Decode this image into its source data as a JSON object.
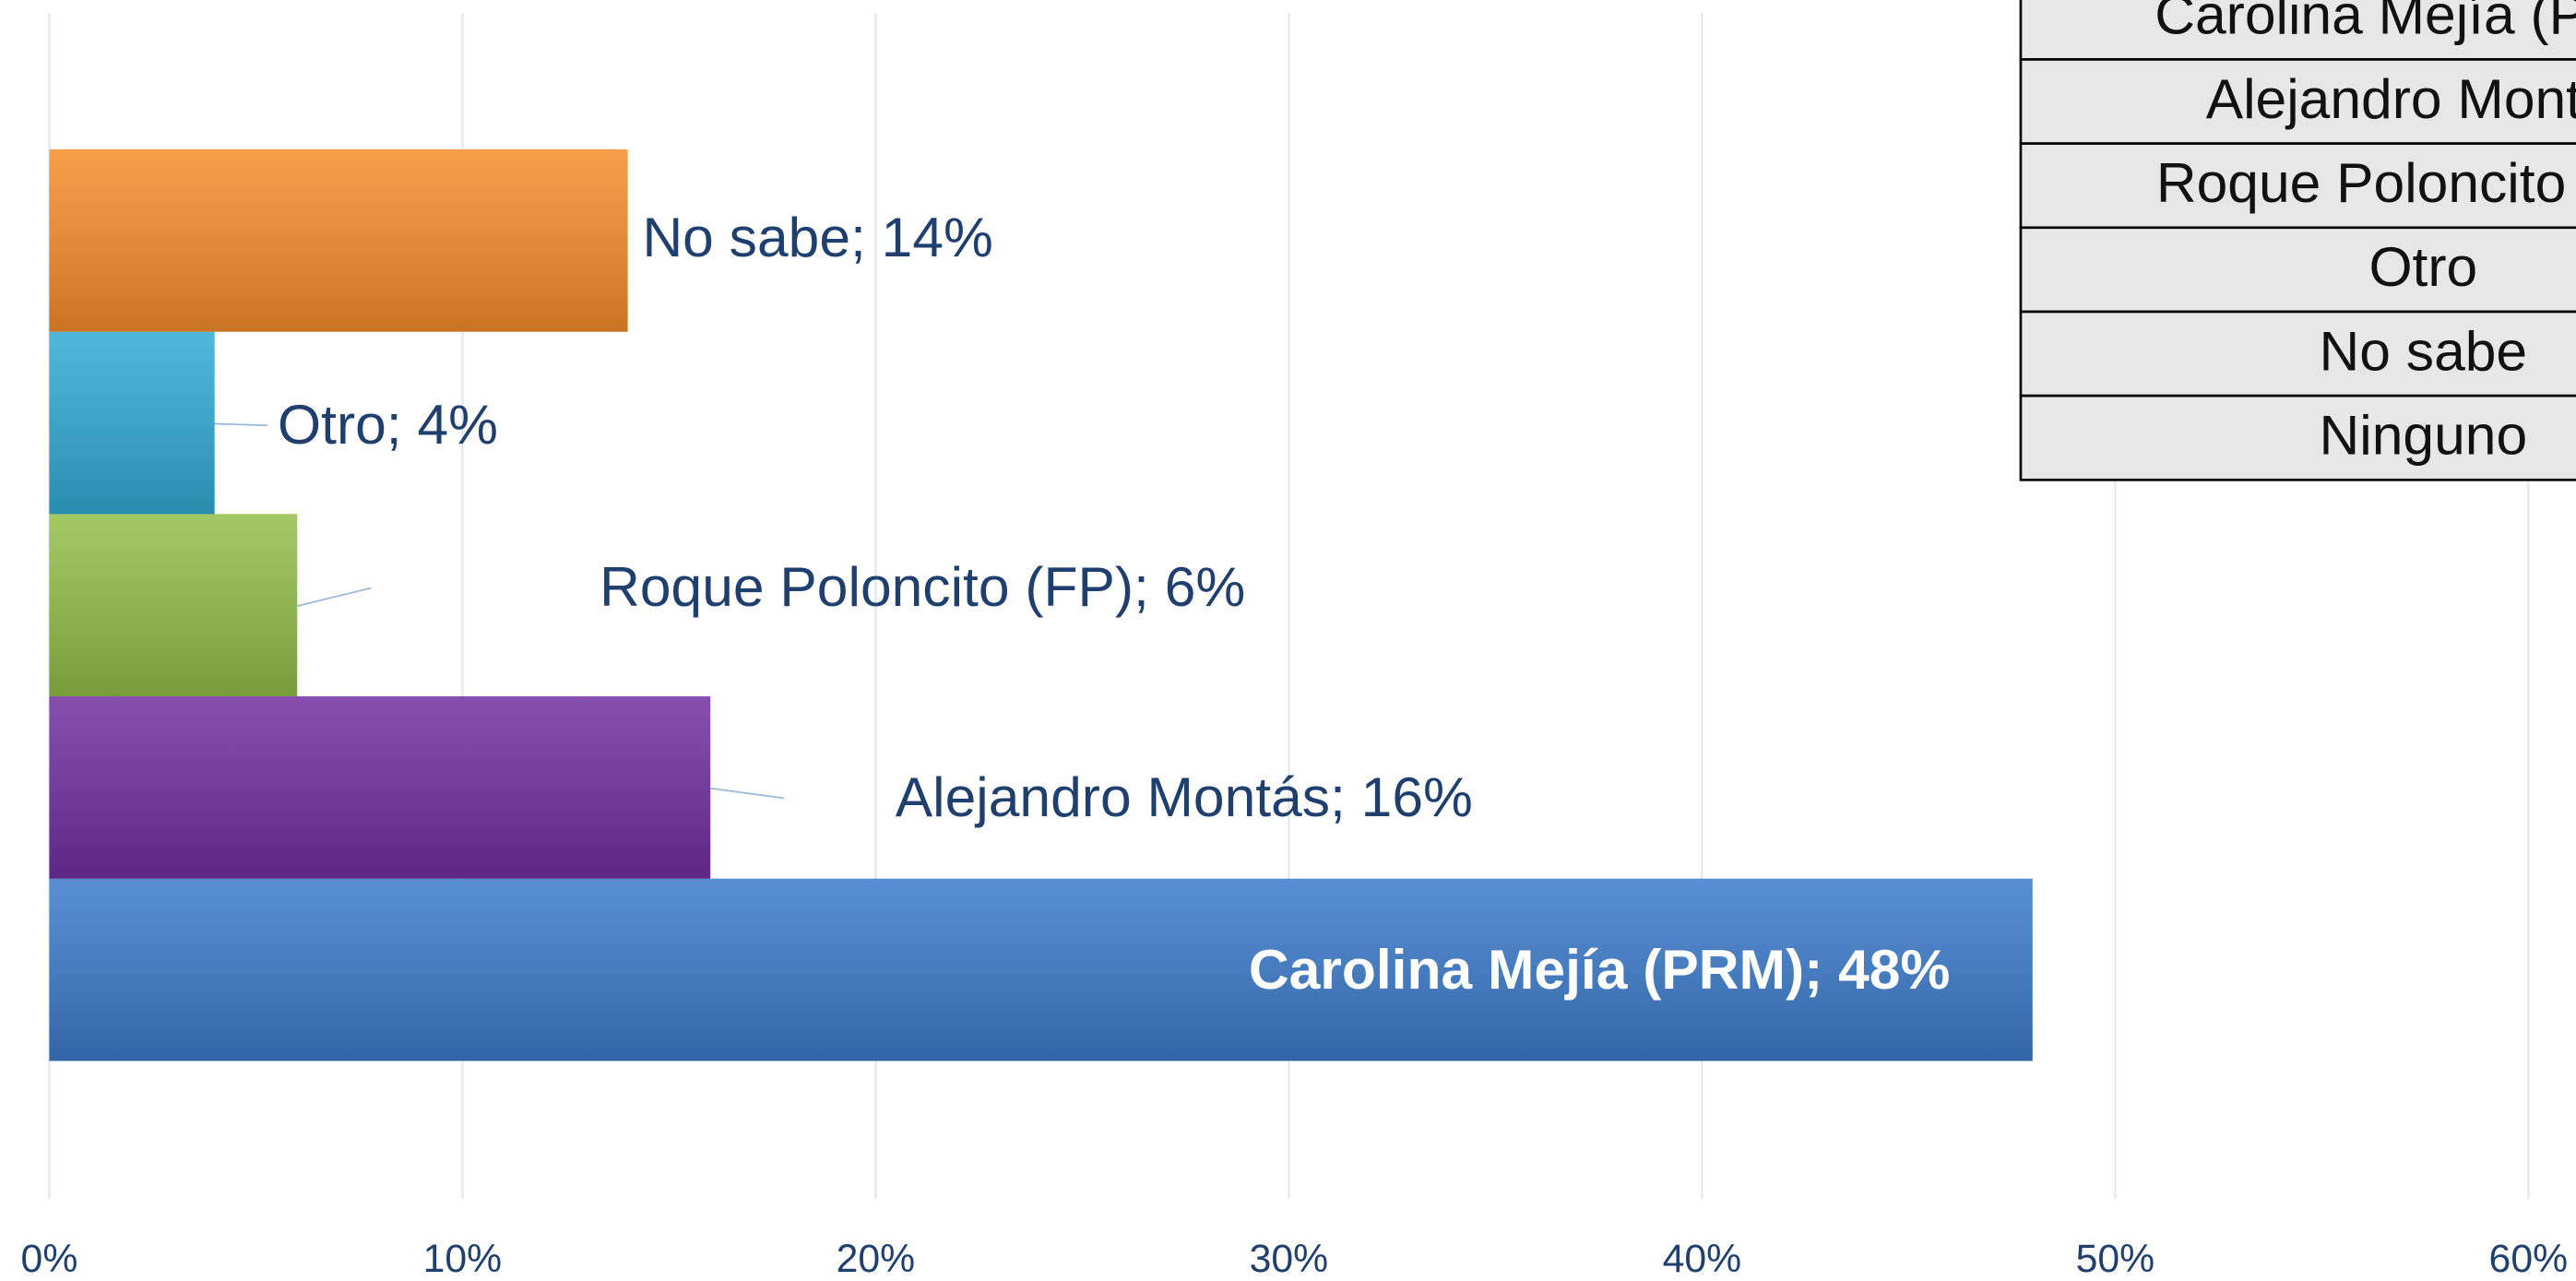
{
  "chart_data": {
    "type": "bar",
    "orientation": "horizontal",
    "categories": [
      "Carolina Mejía (PRM)",
      "Alejandro Montás",
      "Roque Poloncito (FP)",
      "Otro",
      "No sabe",
      "Ninguno"
    ],
    "values": [
      48,
      16,
      6,
      4,
      14,
      null
    ],
    "value_labels": [
      "Carolina Mejía (PRM); 48%",
      "Alejandro Montás; 16%",
      "Roque Poloncito (FP); 6%",
      "Otro; 4%",
      "No sabe; 14%",
      null
    ],
    "colors": [
      "#3b7bcb",
      "#7030a0",
      "#93be48",
      "#31abd3",
      "#f58d2a",
      null
    ],
    "xlim": [
      0,
      60
    ],
    "xticks": [
      {
        "value": 0,
        "label": "0%"
      },
      {
        "value": 10,
        "label": "10%"
      },
      {
        "value": 20,
        "label": "20%"
      },
      {
        "value": 30,
        "label": "30%"
      },
      {
        "value": 40,
        "label": "40%"
      },
      {
        "value": 50,
        "label": "50%"
      },
      {
        "value": 60,
        "label": "60%"
      }
    ],
    "grid": true
  }
}
